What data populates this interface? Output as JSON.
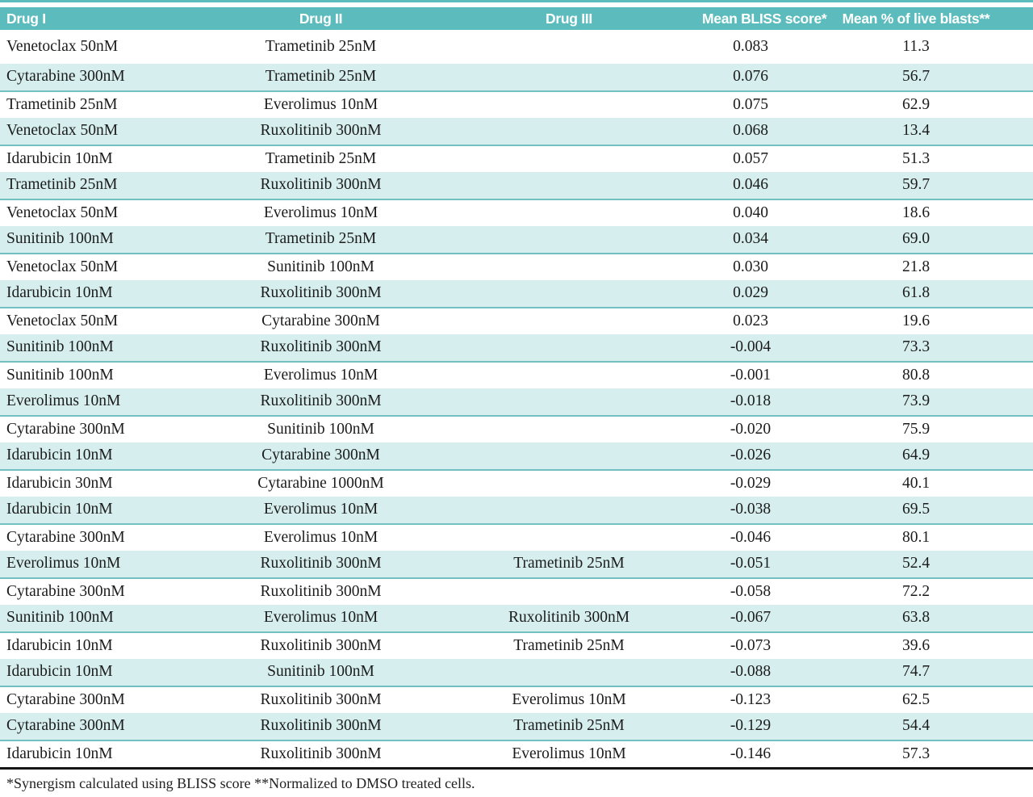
{
  "table": {
    "columns": [
      "Drug I",
      "Drug II",
      "Drug III",
      "Mean BLISS score*",
      "Mean % of live blasts**"
    ],
    "rows": [
      {
        "d1": "Venetoclax 50nM",
        "d2": "Trametinib 25nM",
        "d3": "",
        "bliss": "0.083",
        "blasts": "11.3"
      },
      {
        "d1": "Cytarabine 300nM",
        "d2": "Trametinib 25nM",
        "d3": "",
        "bliss": "0.076",
        "blasts": "56.7"
      },
      {
        "d1": "Trametinib 25nM",
        "d2": "Everolimus 10nM",
        "d3": "",
        "bliss": "0.075",
        "blasts": "62.9"
      },
      {
        "d1": "Venetoclax 50nM",
        "d2": "Ruxolitinib 300nM",
        "d3": "",
        "bliss": "0.068",
        "blasts": "13.4"
      },
      {
        "d1": "Idarubicin 10nM",
        "d2": "Trametinib 25nM",
        "d3": "",
        "bliss": "0.057",
        "blasts": "51.3"
      },
      {
        "d1": "Trametinib 25nM",
        "d2": "Ruxolitinib 300nM",
        "d3": "",
        "bliss": "0.046",
        "blasts": "59.7"
      },
      {
        "d1": "Venetoclax 50nM",
        "d2": "Everolimus 10nM",
        "d3": "",
        "bliss": "0.040",
        "blasts": "18.6"
      },
      {
        "d1": "Sunitinib 100nM",
        "d2": "Trametinib 25nM",
        "d3": "",
        "bliss": "0.034",
        "blasts": "69.0"
      },
      {
        "d1": "Venetoclax 50nM",
        "d2": "Sunitinib 100nM",
        "d3": "",
        "bliss": "0.030",
        "blasts": "21.8"
      },
      {
        "d1": "Idarubicin 10nM",
        "d2": "Ruxolitinib 300nM",
        "d3": "",
        "bliss": "0.029",
        "blasts": "61.8"
      },
      {
        "d1": "Venetoclax 50nM",
        "d2": "Cytarabine 300nM",
        "d3": "",
        "bliss": "0.023",
        "blasts": "19.6"
      },
      {
        "d1": "Sunitinib 100nM",
        "d2": "Ruxolitinib 300nM",
        "d3": "",
        "bliss": "-0.004",
        "blasts": "73.3"
      },
      {
        "d1": "Sunitinib 100nM",
        "d2": "Everolimus 10nM",
        "d3": "",
        "bliss": "-0.001",
        "blasts": "80.8"
      },
      {
        "d1": "Everolimus 10nM",
        "d2": "Ruxolitinib 300nM",
        "d3": "",
        "bliss": "-0.018",
        "blasts": "73.9"
      },
      {
        "d1": "Cytarabine 300nM",
        "d2": "Sunitinib 100nM",
        "d3": "",
        "bliss": "-0.020",
        "blasts": "75.9"
      },
      {
        "d1": "Idarubicin 10nM",
        "d2": "Cytarabine 300nM",
        "d3": "",
        "bliss": "-0.026",
        "blasts": "64.9"
      },
      {
        "d1": "Idarubicin 30nM",
        "d2": "Cytarabine 1000nM",
        "d3": "",
        "bliss": "-0.029",
        "blasts": "40.1"
      },
      {
        "d1": "Idarubicin 10nM",
        "d2": "Everolimus 10nM",
        "d3": "",
        "bliss": "-0.038",
        "blasts": "69.5"
      },
      {
        "d1": "Cytarabine 300nM",
        "d2": "Everolimus 10nM",
        "d3": "",
        "bliss": "-0.046",
        "blasts": "80.1"
      },
      {
        "d1": "Everolimus 10nM",
        "d2": "Ruxolitinib 300nM",
        "d3": "Trametinib 25nM",
        "bliss": "-0.051",
        "blasts": "52.4"
      },
      {
        "d1": "Cytarabine 300nM",
        "d2": "Ruxolitinib 300nM",
        "d3": "",
        "bliss": "-0.058",
        "blasts": "72.2"
      },
      {
        "d1": "Sunitinib 100nM",
        "d2": "Everolimus 10nM",
        "d3": "Ruxolitinib 300nM",
        "bliss": "-0.067",
        "blasts": "63.8"
      },
      {
        "d1": "Idarubicin 10nM",
        "d2": "Ruxolitinib 300nM",
        "d3": "Trametinib 25nM",
        "bliss": "-0.073",
        "blasts": "39.6"
      },
      {
        "d1": "Idarubicin 10nM",
        "d2": "Sunitinib 100nM",
        "d3": "",
        "bliss": "-0.088",
        "blasts": "74.7"
      },
      {
        "d1": "Cytarabine 300nM",
        "d2": "Ruxolitinib 300nM",
        "d3": "Everolimus 10nM",
        "bliss": "-0.123",
        "blasts": "62.5"
      },
      {
        "d1": "Cytarabine 300nM",
        "d2": "Ruxolitinib 300nM",
        "d3": "Trametinib 25nM",
        "bliss": "-0.129",
        "blasts": "54.4"
      },
      {
        "d1": "Idarubicin 10nM",
        "d2": "Ruxolitinib 300nM",
        "d3": "Everolimus 10nM",
        "bliss": "-0.146",
        "blasts": "57.3"
      }
    ]
  },
  "footnote": "*Synergism calculated using BLISS score **Normalized to DMSO treated cells.",
  "colors": {
    "header_bg": "#5cbcbd",
    "alt_row_bg": "#d6eeee",
    "alt_row_border": "#72c0c2",
    "bottom_rule": "#161616"
  }
}
